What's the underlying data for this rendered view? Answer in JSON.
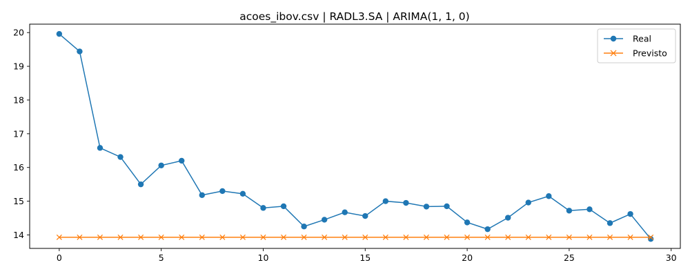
{
  "chart_data": {
    "type": "line",
    "title": "acoes_ibov.csv | RADL3.SA | ARIMA(1, 1, 0)",
    "xlabel": "",
    "ylabel": "",
    "xlim": [
      -1.45,
      30.45
    ],
    "ylim": [
      13.6,
      20.25
    ],
    "xticks": [
      0,
      5,
      10,
      15,
      20,
      25,
      30
    ],
    "yticks": [
      14,
      15,
      16,
      17,
      18,
      19,
      20
    ],
    "grid": false,
    "legend_position": "top-right",
    "x": [
      0,
      1,
      2,
      3,
      4,
      5,
      6,
      7,
      8,
      9,
      10,
      11,
      12,
      13,
      14,
      15,
      16,
      17,
      18,
      19,
      20,
      21,
      22,
      23,
      24,
      25,
      26,
      27,
      28,
      29
    ],
    "series": [
      {
        "name": "Real",
        "color": "#1f77b4",
        "marker": "circle",
        "values": [
          19.96,
          19.44,
          16.58,
          16.31,
          15.5,
          16.06,
          16.2,
          15.18,
          15.3,
          15.22,
          14.8,
          14.85,
          14.25,
          14.45,
          14.67,
          14.56,
          15.0,
          14.95,
          14.84,
          14.85,
          14.37,
          14.17,
          14.51,
          14.96,
          15.15,
          14.72,
          14.76,
          14.35,
          14.62,
          13.88
        ]
      },
      {
        "name": "Previsto",
        "color": "#ff7f0e",
        "marker": "x",
        "values": [
          13.93,
          13.93,
          13.93,
          13.93,
          13.93,
          13.93,
          13.93,
          13.93,
          13.93,
          13.93,
          13.93,
          13.93,
          13.93,
          13.93,
          13.93,
          13.93,
          13.93,
          13.93,
          13.93,
          13.93,
          13.93,
          13.93,
          13.93,
          13.93,
          13.93,
          13.93,
          13.93,
          13.93,
          13.93,
          13.93
        ]
      }
    ]
  }
}
